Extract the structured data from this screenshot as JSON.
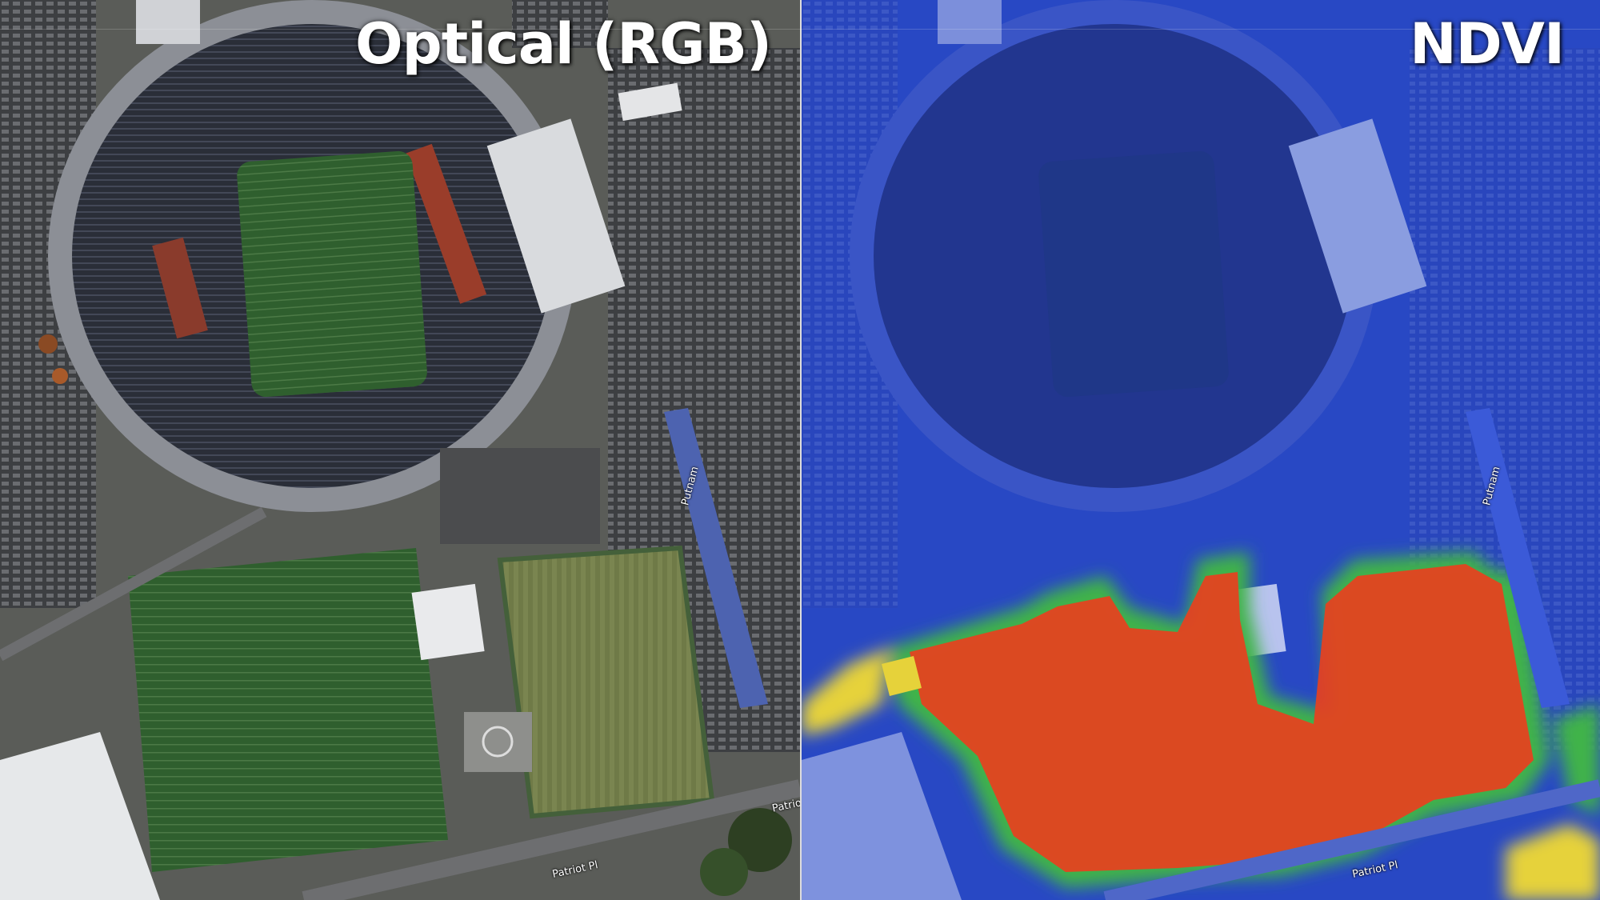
{
  "panels": [
    {
      "title": "Optical (RGB)",
      "mode": "rgb"
    },
    {
      "title": "NDVI",
      "mode": "ndvi"
    }
  ],
  "road_labels": {
    "street_main": "Patriot Pl",
    "street_cut": "Patrio",
    "parking_lane": "Putnam"
  },
  "colors": {
    "ndvi_low": "#2a4fd6",
    "ndvi_mid_green": "#3fb34a",
    "ndvi_mid_yellow": "#e6d23a",
    "ndvi_high": "#e8401e",
    "turf_green": "#2f5a2c",
    "grass_field": "#6b7a43",
    "asphalt": "#4a4a4a"
  }
}
